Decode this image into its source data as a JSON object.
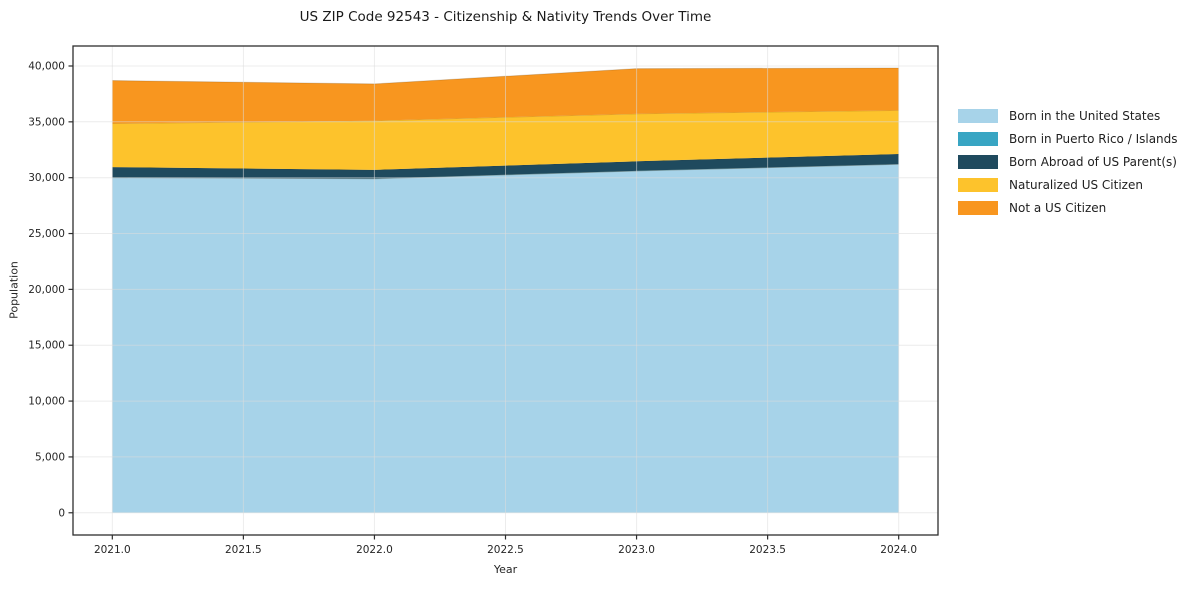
{
  "title": "US ZIP Code 92543 - Citizenship & Nativity Trends Over Time",
  "chart_data": {
    "type": "area",
    "stacked": true,
    "title": "US ZIP Code 92543 - Citizenship & Nativity Trends Over Time",
    "xlabel": "Year",
    "ylabel": "Population",
    "x": [
      2021,
      2022,
      2023,
      2024
    ],
    "series": [
      {
        "name": "Born in the United States",
        "color": "#a7d3e9",
        "values": [
          30000,
          29900,
          30600,
          31200
        ]
      },
      {
        "name": "Born in Puerto Rico / Islands",
        "color": "#38a5c3",
        "values": [
          20,
          20,
          20,
          20
        ]
      },
      {
        "name": "Born Abroad of US Parent(s)",
        "color": "#1f4a5e",
        "values": [
          930,
          780,
          850,
          900
        ]
      },
      {
        "name": "Naturalized US Citizen",
        "color": "#fdc32c",
        "values": [
          3900,
          4400,
          4250,
          3900
        ]
      },
      {
        "name": "Not a US Citizen",
        "color": "#f8961f",
        "values": [
          3850,
          3300,
          4050,
          3800
        ]
      }
    ],
    "totals": [
      38700,
      38400,
      39770,
      39820
    ],
    "xlim": [
      2020.85,
      2024.15
    ],
    "ylim": [
      -1990,
      41790
    ],
    "xtick_values": [
      2021.0,
      2021.5,
      2022.0,
      2022.5,
      2023.0,
      2023.5,
      2024.0
    ],
    "xtick_labels": [
      "2021.0",
      "2021.5",
      "2022.0",
      "2022.5",
      "2023.0",
      "2023.5",
      "2024.0"
    ],
    "ytick_values": [
      0,
      5000,
      10000,
      15000,
      20000,
      25000,
      30000,
      35000,
      40000
    ],
    "ytick_labels": [
      "0",
      "5,000",
      "10,000",
      "15,000",
      "20,000",
      "25,000",
      "30,000",
      "35,000",
      "40,000"
    ],
    "grid": true,
    "legend_position": "right-outside"
  },
  "legend": {
    "items": [
      {
        "label": "Born in the United States"
      },
      {
        "label": "Born in Puerto Rico / Islands"
      },
      {
        "label": "Born Abroad of US Parent(s)"
      },
      {
        "label": "Naturalized US Citizen"
      },
      {
        "label": "Not a US Citizen"
      }
    ]
  },
  "colors": {
    "born_us": "#a7d3e9",
    "born_pr": "#38a5c3",
    "born_abroad": "#1f4a5e",
    "naturalized": "#fdc32c",
    "not_citizen": "#f8961f",
    "spine": "#2e2e2e",
    "grid": "#dcdcdc",
    "text": "#262626"
  }
}
